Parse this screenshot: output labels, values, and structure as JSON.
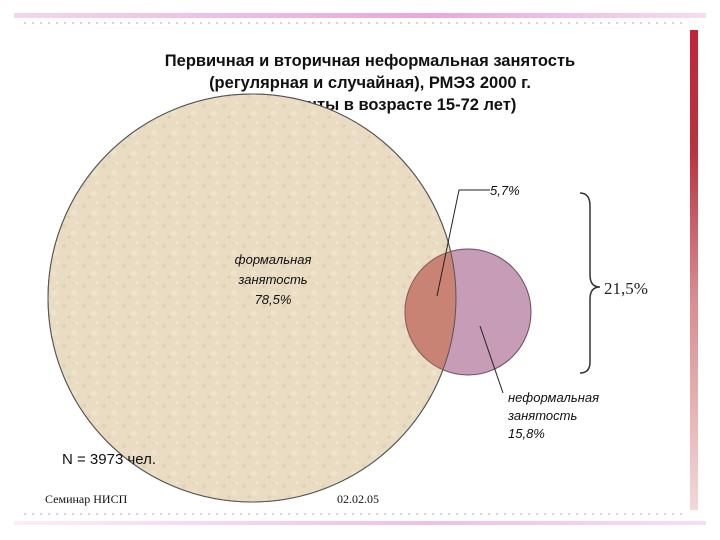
{
  "title": {
    "line1": "Первичная и вторичная неформальная занятость",
    "line2": "(регулярная и случайная), РМЭЗ 2000 г.",
    "line3": "(респонденты в возрасте 15-72 лет)"
  },
  "diagram": {
    "formal": {
      "line1": "формальная",
      "line2": "занятость",
      "value": "78,5%"
    },
    "overlap_value": "5,7%",
    "informal": {
      "line1": "неформальная",
      "line2": "занятость",
      "value": "15,8%"
    },
    "bracket_total": "21,5%"
  },
  "sample_size": "N = 3973 чел.",
  "footer": {
    "left": "Семинар НИСП",
    "date": "02.02.05"
  },
  "colors": {
    "formal_fill": "#e9dcc2",
    "informal_fill": "#c79cb7",
    "bar_red": "#c3243a"
  }
}
